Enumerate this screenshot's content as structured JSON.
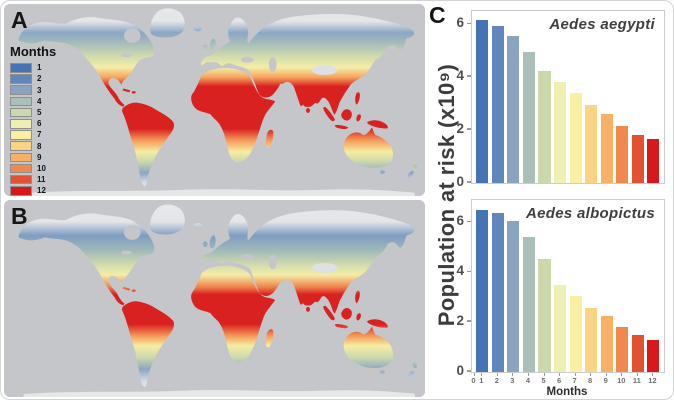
{
  "panels": {
    "a": {
      "label": "A"
    },
    "b": {
      "label": "B"
    },
    "c": {
      "label": "C"
    }
  },
  "legend": {
    "title": "Months",
    "items": [
      {
        "label": "1",
        "color": "#4573b4"
      },
      {
        "label": "2",
        "color": "#6186bb"
      },
      {
        "label": "3",
        "color": "#8aa3be"
      },
      {
        "label": "4",
        "color": "#a9bfb8"
      },
      {
        "label": "5",
        "color": "#cbd8ab"
      },
      {
        "label": "6",
        "color": "#eef0b1"
      },
      {
        "label": "7",
        "color": "#faf0a4"
      },
      {
        "label": "8",
        "color": "#fbd385"
      },
      {
        "label": "9",
        "color": "#f8b066"
      },
      {
        "label": "10",
        "color": "#f1894f"
      },
      {
        "label": "11",
        "color": "#e15233"
      },
      {
        "label": "12",
        "color": "#d7191c"
      }
    ]
  },
  "month_colors": [
    "#4573b4",
    "#6186bb",
    "#8aa3be",
    "#a9bfb8",
    "#cbd8ab",
    "#eef0b1",
    "#faf0a4",
    "#fbd385",
    "#f8b066",
    "#f1894f",
    "#e15233",
    "#d7191c"
  ],
  "y_axis_label": "Population at risk (x10⁹)",
  "chart_data": [
    {
      "type": "bar",
      "title": "Aedes aegypti",
      "categories": [
        1,
        2,
        3,
        4,
        5,
        6,
        7,
        8,
        9,
        10,
        11,
        12
      ],
      "values": [
        6.15,
        5.95,
        5.55,
        4.95,
        4.25,
        3.8,
        3.4,
        2.95,
        2.6,
        2.15,
        1.8,
        1.65
      ],
      "ylabel": "Population at risk (x10⁹)",
      "xlabel": "",
      "ylim": [
        0,
        6.5
      ],
      "yticks": [
        0,
        2,
        4,
        6
      ],
      "grid": false,
      "legend_position": "none"
    },
    {
      "type": "bar",
      "title": "Aedes albopictus",
      "categories": [
        1,
        2,
        3,
        4,
        5,
        6,
        7,
        8,
        9,
        10,
        11,
        12
      ],
      "values": [
        6.5,
        6.4,
        6.05,
        5.4,
        4.55,
        3.5,
        3.05,
        2.55,
        2.25,
        1.8,
        1.5,
        1.3
      ],
      "ylabel": "Population at risk (x10⁹)",
      "xlabel": "Months",
      "ylim": [
        0,
        6.9
      ],
      "yticks": [
        0,
        2,
        4,
        6
      ],
      "xticks": [
        0,
        1,
        2,
        3,
        4,
        5,
        6,
        7,
        8,
        9,
        10,
        11,
        12
      ],
      "grid": false,
      "legend_position": "none"
    }
  ]
}
